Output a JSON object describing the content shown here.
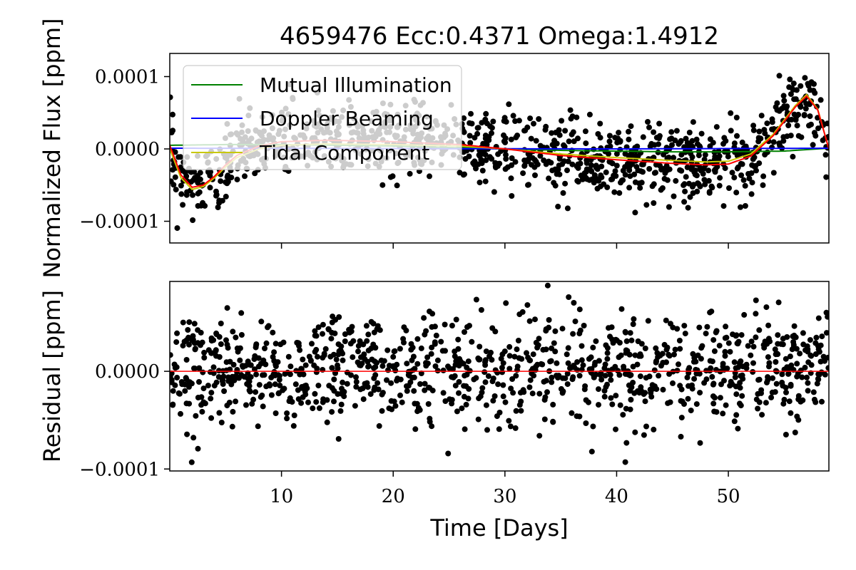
{
  "chart_data": [
    {
      "type": "scatter",
      "title": "4659476 Ecc:0.4371 Omega:1.4912",
      "xlabel": "",
      "ylabel": "Normalized Flux [ppm]",
      "xlim": [
        0,
        59
      ],
      "ylim": [
        -0.00013,
        0.000132
      ],
      "y_ticks": [
        -0.0001,
        0.0,
        0.0001
      ],
      "y_tick_labels": [
        "−0.0001",
        "0.0000",
        "0.0001"
      ],
      "x_ticks": [
        10,
        20,
        30,
        40,
        50
      ],
      "grid": false,
      "legend_position": "top-left",
      "series": [
        {
          "name": "Mutual Illumination",
          "color": "#008000",
          "type": "line",
          "x": [
            0,
            5,
            10,
            15,
            20,
            25,
            30,
            35,
            40,
            45,
            50,
            55,
            59
          ],
          "y": [
            5e-06,
            6e-06,
            6e-06,
            5e-06,
            4e-06,
            2e-06,
            0.0,
            -2e-06,
            -3e-06,
            -4e-06,
            -4e-06,
            -3e-06,
            1e-06
          ]
        },
        {
          "name": "Doppler Beaming",
          "color": "#0000ff",
          "type": "line",
          "x": [
            0,
            10,
            20,
            30,
            40,
            50,
            59
          ],
          "y": [
            1e-06,
            8e-07,
            5e-07,
            2e-07,
            0.0,
            5e-07,
            1e-06
          ]
        },
        {
          "name": "Tidal Component",
          "color": "#c8c800",
          "type": "line",
          "x": [
            0,
            1,
            2,
            3,
            4,
            5,
            6,
            8,
            10,
            14,
            20,
            26,
            30,
            35,
            40,
            45,
            48,
            50,
            52,
            54,
            56,
            57,
            58,
            59
          ],
          "y": [
            0.0,
            -4e-05,
            -5.6e-05,
            -5.2e-05,
            -4e-05,
            -2.5e-05,
            -1.2e-05,
            0.0,
            5e-06,
            7e-06,
            6e-06,
            4e-06,
            0.0,
            -7e-06,
            -1.2e-05,
            -1.6e-05,
            -1.8e-05,
            -1.7e-05,
            -7e-06,
            2e-05,
            6e-05,
            7.5e-05,
            5.5e-05,
            0.0
          ]
        },
        {
          "name": "",
          "color": "#ff0000",
          "type": "line",
          "x": [
            0,
            1,
            2,
            3,
            4,
            5,
            6,
            8,
            10,
            14,
            20,
            26,
            30,
            35,
            40,
            45,
            48,
            50,
            52,
            54,
            56,
            57,
            58,
            59
          ],
          "y": [
            5e-06,
            -3.6e-05,
            -5.3e-05,
            -5e-05,
            -3.8e-05,
            -2.2e-05,
            -9e-06,
            4e-06,
            1e-05,
            1.2e-05,
            1e-05,
            6e-06,
            0.0,
            -9e-06,
            -1.5e-05,
            -2e-05,
            -2.2e-05,
            -2.1e-05,
            -1e-05,
            1.8e-05,
            5.8e-05,
            7.3e-05,
            5.4e-05,
            0.0
          ]
        },
        {
          "name": "",
          "color": "#000000",
          "type": "points",
          "noise": 2.5e-05,
          "count": 1100
        }
      ]
    },
    {
      "type": "scatter",
      "title": "",
      "xlabel": "Time [Days]",
      "ylabel": "Residual [ppm]",
      "xlim": [
        0,
        59
      ],
      "ylim": [
        -0.000102,
        9.2e-05
      ],
      "y_ticks": [
        -0.0001,
        0.0
      ],
      "y_tick_labels": [
        "−0.0001",
        "0.0000"
      ],
      "x_ticks": [
        10,
        20,
        30,
        40,
        50
      ],
      "x_tick_labels": [
        "10",
        "20",
        "30",
        "40",
        "50"
      ],
      "grid": false,
      "series": [
        {
          "name": "",
          "color": "#ff0000",
          "type": "hline",
          "y": 0.0
        },
        {
          "name": "",
          "color": "#000000",
          "type": "points",
          "noise": 2.8e-05,
          "count": 1100
        }
      ]
    }
  ]
}
